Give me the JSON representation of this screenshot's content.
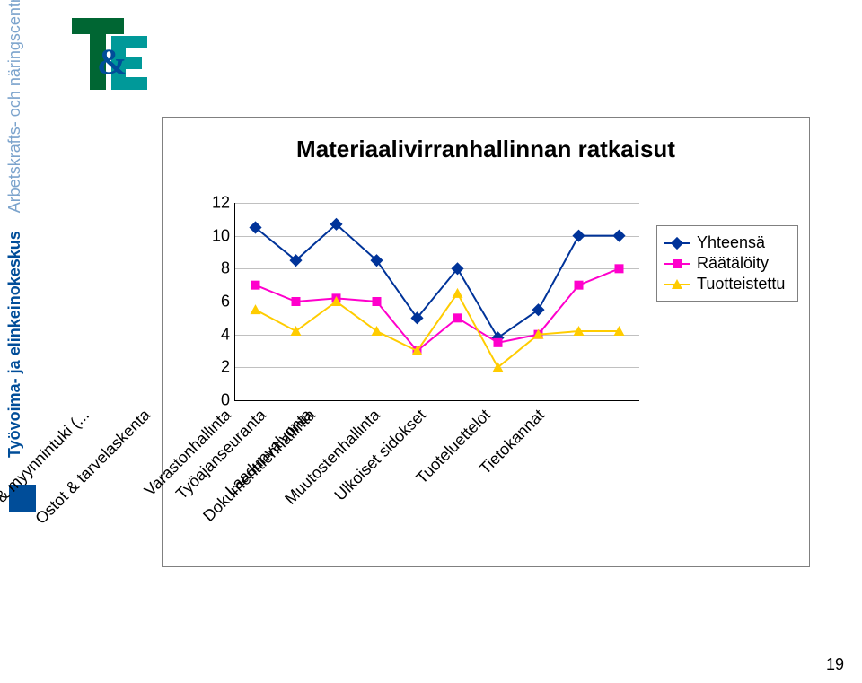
{
  "page": {
    "sidebar_text_main": "Työvoima- ja elinkeinokeskus",
    "sidebar_text_sub": "Arbetskrafts- och näringscentralen",
    "page_number": "19"
  },
  "logo": {
    "t_color": "#006633",
    "e_color": "#009999",
    "amp_color": "#004d99"
  },
  "chart": {
    "title": "Materiaalivirranhallinnan ratkaisut",
    "type": "line",
    "plot_bg": "#ffffff",
    "grid_color": "#c0c0c0",
    "border_color": "#808080",
    "y_min": 0,
    "y_max": 12,
    "y_step": 2,
    "y_ticks": [
      0,
      2,
      4,
      6,
      8,
      10,
      12
    ],
    "categories": [
      "Myynti & myynnintuki (...",
      "Ostot & tarvelaskenta",
      "Varastonhallinta",
      "Työajanseuranta",
      "Laadunvalvonta",
      "Dokumenttienhallinta",
      "Muutostenhallinta",
      "Ulkoiset sidokset",
      "Tuoteluettelot",
      "Tietokannat"
    ],
    "series": [
      {
        "name": "Yhteensä",
        "color": "#003399",
        "marker": "diamond",
        "values": [
          10.5,
          8.5,
          10.7,
          8.5,
          5,
          8,
          3.8,
          5.5,
          10,
          10
        ]
      },
      {
        "name": "Räätälöity",
        "color": "#ff00cc",
        "marker": "square",
        "values": [
          7,
          6,
          6.2,
          6,
          3,
          5,
          3.5,
          4,
          7,
          8
        ]
      },
      {
        "name": "Tuotteistettu",
        "color": "#ffcc00",
        "marker": "triangle",
        "values": [
          5.5,
          4.2,
          6,
          4.2,
          3,
          6.5,
          2,
          4,
          4.2,
          4.2
        ]
      }
    ],
    "legend": {
      "position": "right",
      "border_color": "#808080"
    },
    "label_fontsize": 18,
    "title_fontsize": 26,
    "marker_size": 10,
    "line_width": 2
  }
}
